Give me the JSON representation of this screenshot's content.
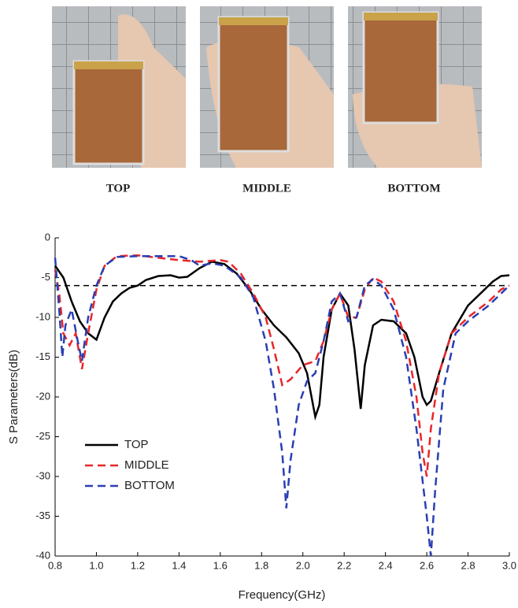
{
  "photos": {
    "labels": [
      "TOP",
      "MIDDLE",
      "BOTTOM"
    ]
  },
  "chart_data": {
    "type": "line",
    "xlabel": "Frequency(GHz)",
    "ylabel": "S Parameters(dB)",
    "xlim": [
      0.8,
      3.0
    ],
    "ylim": [
      -40,
      0
    ],
    "xticks": [
      0.8,
      {
        "value": 1,
        "label": "1.0"
      },
      1.2,
      1.4,
      1.6,
      1.8,
      {
        "value": 2,
        "label": "2.0"
      },
      2.2,
      2.4,
      2.6,
      2.8,
      {
        "value": 3,
        "label": "3.0"
      }
    ],
    "yticks": [
      0,
      -5,
      -10,
      -15,
      -20,
      -25,
      -30,
      -35,
      -40
    ],
    "hline": -6,
    "legend": "lower-left",
    "series": [
      {
        "name": "TOP",
        "color": "#000000",
        "dashed": false,
        "x": [
          0.8,
          0.84,
          0.88,
          0.92,
          0.96,
          1.0,
          1.04,
          1.08,
          1.12,
          1.16,
          1.2,
          1.24,
          1.3,
          1.36,
          1.4,
          1.44,
          1.5,
          1.56,
          1.62,
          1.68,
          1.74,
          1.8,
          1.86,
          1.92,
          1.98,
          2.02,
          2.06,
          2.08,
          2.1,
          2.14,
          2.18,
          2.22,
          2.25,
          2.28,
          2.3,
          2.34,
          2.38,
          2.44,
          2.5,
          2.54,
          2.58,
          2.6,
          2.62,
          2.66,
          2.72,
          2.8,
          2.86,
          2.92,
          2.96,
          3.0
        ],
        "values": [
          -3.5,
          -5,
          -8,
          -10.5,
          -12,
          -12.8,
          -10,
          -8,
          -7,
          -6.3,
          -6,
          -5.3,
          -4.8,
          -4.7,
          -5,
          -4.9,
          -3.8,
          -3,
          -3.3,
          -4.5,
          -6.5,
          -9,
          -11,
          -12.5,
          -14.5,
          -17,
          -22.5,
          -21,
          -15,
          -9,
          -7,
          -8.5,
          -14,
          -21.5,
          -16,
          -11,
          -10.3,
          -10.5,
          -12,
          -15,
          -20,
          -21,
          -20.5,
          -17,
          -12,
          -8.5,
          -7,
          -5.5,
          -4.8,
          -4.7
        ]
      },
      {
        "name": "MIDDLE",
        "color": "#e8262a",
        "dashed": true,
        "x": [
          0.8,
          0.82,
          0.84,
          0.87,
          0.9,
          0.93,
          0.96,
          1.0,
          1.04,
          1.1,
          1.2,
          1.3,
          1.4,
          1.5,
          1.6,
          1.64,
          1.7,
          1.76,
          1.82,
          1.86,
          1.9,
          1.94,
          2.0,
          2.06,
          2.1,
          2.14,
          2.18,
          2.22,
          2.26,
          2.3,
          2.34,
          2.38,
          2.44,
          2.5,
          2.55,
          2.58,
          2.6,
          2.62,
          2.66,
          2.72,
          2.8,
          2.9,
          2.96,
          3.0
        ],
        "values": [
          -4,
          -7,
          -12,
          -13.5,
          -12,
          -16.5,
          -12,
          -6.5,
          -3.5,
          -2.3,
          -2.2,
          -2.5,
          -2.8,
          -3,
          -2.8,
          -3,
          -4.5,
          -7,
          -10,
          -14,
          -18.5,
          -17.8,
          -16,
          -15.5,
          -13,
          -9,
          -7,
          -10,
          -10,
          -6.5,
          -5,
          -5.5,
          -8,
          -13,
          -20,
          -27,
          -30,
          -24,
          -17,
          -12,
          -10,
          -8,
          -6.5,
          -6
        ]
      },
      {
        "name": "BOTTOM",
        "color": "#2a3fb4",
        "dashed": true,
        "x": [
          0.8,
          0.82,
          0.835,
          0.85,
          0.88,
          0.91,
          0.93,
          0.96,
          1.0,
          1.04,
          1.1,
          1.2,
          1.3,
          1.4,
          1.46,
          1.5,
          1.56,
          1.62,
          1.7,
          1.76,
          1.82,
          1.86,
          1.9,
          1.92,
          1.94,
          1.98,
          2.02,
          2.06,
          2.1,
          2.14,
          2.18,
          2.22,
          2.26,
          2.3,
          2.34,
          2.38,
          2.44,
          2.5,
          2.55,
          2.6,
          2.62,
          2.64,
          2.68,
          2.74,
          2.8,
          2.9,
          2.96,
          3.0
        ],
        "values": [
          -2.5,
          -9,
          -15,
          -11,
          -9,
          -13,
          -15.5,
          -10,
          -6,
          -3.5,
          -2.4,
          -2.3,
          -2.3,
          -2.3,
          -2.8,
          -3.5,
          -3.2,
          -3.5,
          -5,
          -7.5,
          -13,
          -19,
          -27,
          -34,
          -28,
          -21,
          -18,
          -17,
          -13,
          -8,
          -7,
          -10.5,
          -10,
          -6,
          -5.2,
          -6,
          -9,
          -15,
          -24,
          -35,
          -40,
          -32,
          -19,
          -12,
          -10.5,
          -8.5,
          -7,
          -6
        ]
      }
    ]
  }
}
